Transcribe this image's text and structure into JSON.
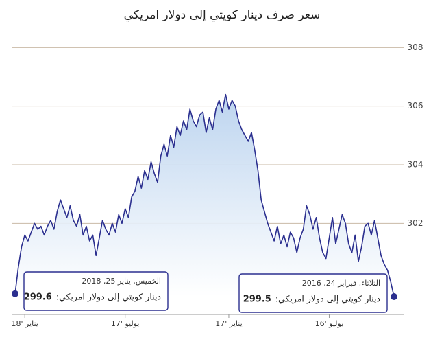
{
  "chart_data": {
    "type": "area",
    "title": "سعر صرف دينار كويتي إلى دولار امريكي",
    "categories": [
      null,
      null,
      null,
      "يناير '18",
      null,
      null,
      null,
      null,
      null,
      null,
      null,
      null,
      null,
      null,
      null,
      null,
      null,
      null,
      null,
      null,
      null,
      null,
      null,
      null,
      null,
      null,
      null,
      null,
      null,
      null,
      null,
      null,
      null,
      null,
      "يوليو '17",
      null,
      null,
      null,
      null,
      null,
      null,
      null,
      null,
      null,
      null,
      null,
      null,
      null,
      null,
      null,
      null,
      null,
      null,
      null,
      null,
      null,
      null,
      null,
      null,
      null,
      null,
      null,
      null,
      null,
      null,
      null,
      "يناير '17",
      null,
      null,
      null,
      null,
      null,
      null,
      null,
      null,
      null,
      null,
      null,
      null,
      null,
      null,
      null,
      null,
      null,
      null,
      null,
      null,
      null,
      null,
      null,
      null,
      null,
      null,
      null,
      null,
      null,
      null,
      "يوليو '16",
      null,
      null,
      null,
      null,
      null,
      null,
      null,
      null,
      null,
      null,
      null,
      null,
      null,
      null,
      null,
      null,
      null,
      null,
      null,
      null
    ],
    "values": [
      299.6,
      300.5,
      301.2,
      301.6,
      301.4,
      301.7,
      302.0,
      301.8,
      301.9,
      301.6,
      301.9,
      302.1,
      301.8,
      302.4,
      302.8,
      302.5,
      302.2,
      302.6,
      302.1,
      301.9,
      302.3,
      301.6,
      301.9,
      301.4,
      301.6,
      300.9,
      301.5,
      302.1,
      301.8,
      301.6,
      302.0,
      301.7,
      302.3,
      302.0,
      302.5,
      302.2,
      302.9,
      303.1,
      303.6,
      303.2,
      303.8,
      303.5,
      304.1,
      303.7,
      303.4,
      304.3,
      304.7,
      304.3,
      305.0,
      304.6,
      305.3,
      305.0,
      305.5,
      305.2,
      305.9,
      305.5,
      305.3,
      305.7,
      305.8,
      305.1,
      305.6,
      305.2,
      305.9,
      306.2,
      305.8,
      306.4,
      305.9,
      306.2,
      306.0,
      305.5,
      305.2,
      305.0,
      304.8,
      305.1,
      304.5,
      303.8,
      302.8,
      302.4,
      302.0,
      301.7,
      301.4,
      301.9,
      301.3,
      301.6,
      301.2,
      301.7,
      301.5,
      301.0,
      301.5,
      301.8,
      302.6,
      302.3,
      301.8,
      302.2,
      301.5,
      301.0,
      300.8,
      301.5,
      302.2,
      301.3,
      301.8,
      302.3,
      302.0,
      301.3,
      301.0,
      301.6,
      300.7,
      301.2,
      301.9,
      302.0,
      301.6,
      302.1,
      301.5,
      300.9,
      300.6,
      300.4,
      300.0,
      299.5
    ],
    "color": "#2b2f8f",
    "ylim": [
      299.5,
      308.5
    ],
    "yticks": [
      302,
      304,
      306,
      308
    ],
    "grid": true,
    "tooltip_label": "دينار كويتي إلى دولار امريكي:",
    "tooltip_dates": [
      "الخميس, يناير 25, 2018",
      "الثلاثاء, فبراير 24, 2016"
    ]
  }
}
